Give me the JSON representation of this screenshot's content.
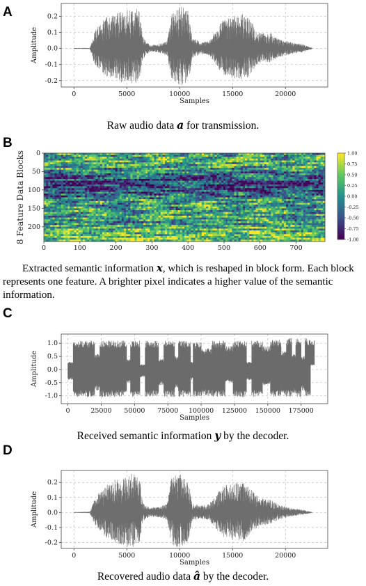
{
  "panels": [
    {
      "letter": "A",
      "caption_pre": "Raw audio data ",
      "caption_sym": "a",
      "caption_post": " for transmission."
    },
    {
      "letter": "B",
      "caption_pre": "Extracted semantic information ",
      "caption_sym": "x",
      "caption_post": ", which is reshaped in block form. Each block represents one feature. A brighter pixel indicates a higher value of the semantic information."
    },
    {
      "letter": "C",
      "caption_pre": "Received semantic information ",
      "caption_sym": "y",
      "caption_post": " by the decoder."
    },
    {
      "letter": "D",
      "caption_pre": "Recovered audio data ",
      "caption_sym": "â",
      "caption_post": " by the decoder."
    }
  ],
  "chart_data": [
    {
      "type": "line",
      "panel": "A",
      "xlabel": "Samples",
      "ylabel": "Amplitude",
      "xlim": [
        -1200,
        24000
      ],
      "ylim": [
        -0.24,
        0.28
      ],
      "xticks": [
        "0",
        "5000",
        "10000",
        "15000",
        "20000"
      ],
      "xtick_values": [
        0,
        5000,
        10000,
        15000,
        20000
      ],
      "yticks": [
        "-0.2",
        "-0.1",
        "0.0",
        "0.1",
        "0.2"
      ],
      "ytick_values": [
        -0.2,
        -0.1,
        0.0,
        0.1,
        0.2
      ],
      "grid": true,
      "color": "#6e6e6e",
      "envelope": [
        [
          0,
          0.003
        ],
        [
          1500,
          0.004
        ],
        [
          2000,
          0.12
        ],
        [
          3000,
          0.2
        ],
        [
          4500,
          0.24
        ],
        [
          5500,
          0.25
        ],
        [
          6200,
          0.25
        ],
        [
          6500,
          0.08
        ],
        [
          7200,
          0.02
        ],
        [
          8000,
          0.03
        ],
        [
          8800,
          0.05
        ],
        [
          9200,
          0.22
        ],
        [
          10000,
          0.27
        ],
        [
          10800,
          0.25
        ],
        [
          11200,
          0.07
        ],
        [
          12000,
          0.04
        ],
        [
          12800,
          0.05
        ],
        [
          13200,
          0.09
        ],
        [
          14000,
          0.18
        ],
        [
          15000,
          0.21
        ],
        [
          16000,
          0.22
        ],
        [
          16500,
          0.2
        ],
        [
          17500,
          0.1
        ],
        [
          18500,
          0.1
        ],
        [
          19500,
          0.06
        ],
        [
          20500,
          0.04
        ],
        [
          21500,
          0.03
        ],
        [
          22500,
          0.005
        ]
      ]
    },
    {
      "type": "heatmap",
      "panel": "B",
      "ylabel": "8 Feature Data Blocks",
      "xlim": [
        0,
        780
      ],
      "ylim": [
        0,
        240
      ],
      "xticks": [
        "0",
        "100",
        "200",
        "300",
        "400",
        "500",
        "600",
        "700"
      ],
      "xtick_values": [
        0,
        100,
        200,
        300,
        400,
        500,
        600,
        700
      ],
      "yticks": [
        "0",
        "50",
        "100",
        "150",
        "200"
      ],
      "ytick_values": [
        0,
        50,
        100,
        150,
        200
      ],
      "colorbar_ticks": [
        "1.00",
        "0.75",
        "0.50",
        "0.25",
        "0.00",
        "-0.25",
        "-0.50",
        "-0.75",
        "-1.00"
      ],
      "colorbar_values": [
        1.0,
        0.75,
        0.5,
        0.25,
        0.0,
        -0.25,
        -0.5,
        -0.75,
        -1.0
      ],
      "colormap": [
        "#440154",
        "#3b528b",
        "#21918c",
        "#5ec962",
        "#fde725"
      ],
      "row_bias": [
        [
          0,
          0.15
        ],
        [
          10,
          0.2
        ],
        [
          25,
          0.35
        ],
        [
          40,
          0.1
        ],
        [
          55,
          -0.1
        ],
        [
          70,
          -0.45
        ],
        [
          85,
          -0.6
        ],
        [
          100,
          -0.55
        ],
        [
          115,
          -0.2
        ],
        [
          130,
          0.1
        ],
        [
          145,
          0.05
        ],
        [
          160,
          0.15
        ],
        [
          175,
          0.2
        ],
        [
          190,
          0.0
        ],
        [
          205,
          0.3
        ],
        [
          220,
          0.45
        ],
        [
          240,
          0.5
        ]
      ]
    },
    {
      "type": "line",
      "panel": "C",
      "xlabel": "Samples",
      "ylabel": "Amplitude",
      "xlim": [
        -5000,
        195000
      ],
      "ylim": [
        -1.3,
        1.35
      ],
      "xticks": [
        "0",
        "25000",
        "50000",
        "75000",
        "100000",
        "125000",
        "150000",
        "175000"
      ],
      "xtick_values": [
        0,
        25000,
        50000,
        75000,
        100000,
        125000,
        150000,
        175000
      ],
      "yticks": [
        "-1.0",
        "-0.5",
        "0.0",
        "0.5",
        "1.0"
      ],
      "ytick_values": [
        -1.0,
        -0.5,
        0.0,
        0.5,
        1.0
      ],
      "grid": true,
      "color": "#6b6b6b",
      "segments": [
        [
          0,
          4000,
          -0.4,
          0.3
        ],
        [
          4000,
          20000,
          -1.05,
          1.1
        ],
        [
          20000,
          24000,
          -0.8,
          0.6
        ],
        [
          24000,
          44000,
          -1.05,
          1.1
        ],
        [
          44000,
          47000,
          -0.5,
          0.4
        ],
        [
          47000,
          54000,
          -1.05,
          1.1
        ],
        [
          54000,
          58000,
          -0.3,
          0.2
        ],
        [
          58000,
          68000,
          -1.05,
          1.1
        ],
        [
          68000,
          72000,
          -0.6,
          0.4
        ],
        [
          72000,
          80000,
          -1.05,
          1.1
        ],
        [
          80000,
          83000,
          -0.7,
          0.5
        ],
        [
          83000,
          92000,
          -1.05,
          1.1
        ],
        [
          92000,
          94000,
          -0.4,
          0.3
        ],
        [
          94000,
          100000,
          -1.05,
          1.05
        ],
        [
          100000,
          108000,
          -1.0,
          0.8
        ],
        [
          108000,
          118000,
          -1.05,
          1.1
        ],
        [
          118000,
          124000,
          -0.5,
          0.9
        ],
        [
          124000,
          134000,
          -1.05,
          1.1
        ],
        [
          134000,
          138000,
          -0.4,
          0.3
        ],
        [
          138000,
          146000,
          -1.05,
          1.1
        ],
        [
          146000,
          152000,
          -0.6,
          0.9
        ],
        [
          152000,
          160000,
          -1.05,
          1.15
        ],
        [
          160000,
          164000,
          -1.0,
          0.7
        ],
        [
          164000,
          168000,
          -1.05,
          1.2
        ],
        [
          168000,
          171000,
          -0.9,
          0.6
        ],
        [
          171000,
          175000,
          -1.05,
          1.2
        ],
        [
          175000,
          178000,
          -0.8,
          0.5
        ],
        [
          178000,
          182000,
          -1.05,
          1.2
        ],
        [
          182000,
          185000,
          0.2,
          1.15
        ]
      ]
    },
    {
      "type": "line",
      "panel": "D",
      "xlabel": "Samples",
      "ylabel": "Amplitude",
      "xlim": [
        -1200,
        24000
      ],
      "ylim": [
        -0.24,
        0.28
      ],
      "xticks": [
        "0",
        "5000",
        "10000",
        "15000",
        "20000"
      ],
      "xtick_values": [
        0,
        5000,
        10000,
        15000,
        20000
      ],
      "yticks": [
        "-0.2",
        "-0.1",
        "0.0",
        "0.1",
        "0.2"
      ],
      "ytick_values": [
        -0.2,
        -0.1,
        0.0,
        0.1,
        0.2
      ],
      "grid": true,
      "color": "#6e6e6e",
      "envelope": [
        [
          0,
          0.003
        ],
        [
          1500,
          0.005
        ],
        [
          2000,
          0.1
        ],
        [
          3000,
          0.19
        ],
        [
          4500,
          0.25
        ],
        [
          5500,
          0.27
        ],
        [
          6200,
          0.25
        ],
        [
          6500,
          0.07
        ],
        [
          7200,
          0.03
        ],
        [
          8000,
          0.04
        ],
        [
          8800,
          0.06
        ],
        [
          9200,
          0.24
        ],
        [
          10000,
          0.27
        ],
        [
          10800,
          0.22
        ],
        [
          11200,
          0.06
        ],
        [
          12000,
          0.05
        ],
        [
          12800,
          0.06
        ],
        [
          13200,
          0.1
        ],
        [
          14000,
          0.18
        ],
        [
          15000,
          0.21
        ],
        [
          16000,
          0.22
        ],
        [
          16500,
          0.19
        ],
        [
          17500,
          0.1
        ],
        [
          18500,
          0.09
        ],
        [
          19500,
          0.05
        ],
        [
          20500,
          0.03
        ],
        [
          21500,
          0.02
        ],
        [
          22500,
          0.004
        ]
      ]
    }
  ]
}
